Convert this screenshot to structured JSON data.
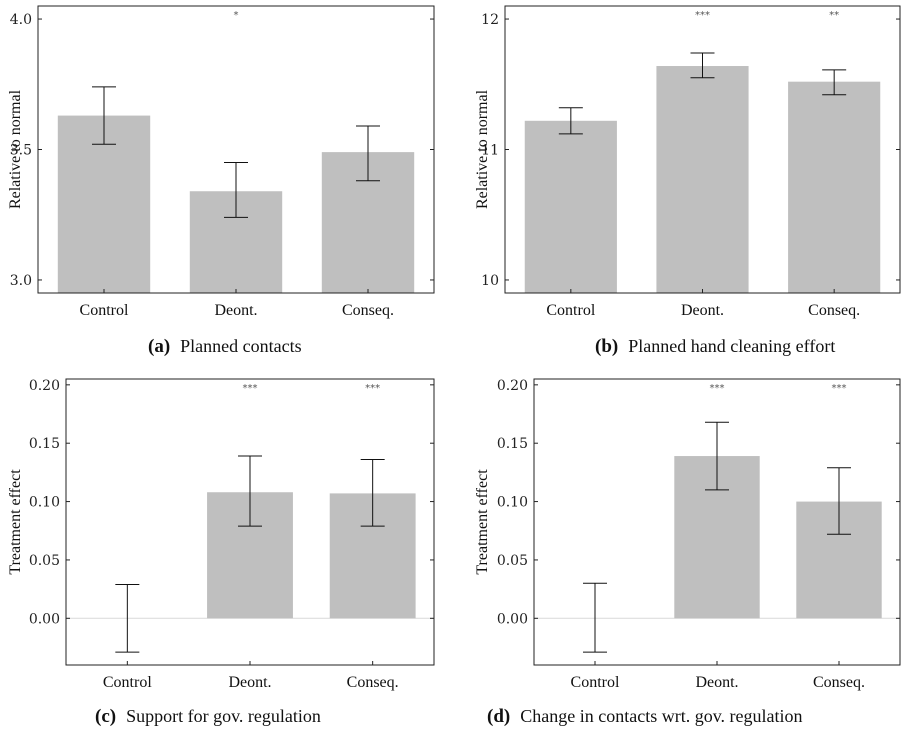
{
  "chart_data": [
    {
      "type": "bar",
      "caption_letter": "(a)",
      "caption": "Planned contacts",
      "ylabel": "Relative to normal",
      "ylim": [
        2.95,
        4.05
      ],
      "yticks": [
        3.0,
        3.5,
        4.0
      ],
      "ytick_labels": [
        "3.0",
        "3.5",
        "4.0"
      ],
      "categories": [
        "Control",
        "Deont.",
        "Conseq."
      ],
      "values": [
        3.63,
        3.34,
        3.49
      ],
      "err_low": [
        3.52,
        3.24,
        3.38
      ],
      "err_high": [
        3.74,
        3.45,
        3.59
      ],
      "stars": [
        "",
        "*",
        ""
      ],
      "zero_line": false,
      "colors": {
        "bar": "#bfbfbf"
      }
    },
    {
      "type": "bar",
      "caption_letter": "(b)",
      "caption": "Planned hand cleaning effort",
      "ylabel": "Relative to normal",
      "ylim": [
        9.9,
        12.1
      ],
      "yticks": [
        10,
        11,
        12
      ],
      "ytick_labels": [
        "10",
        "11",
        "12"
      ],
      "categories": [
        "Control",
        "Deont.",
        "Conseq."
      ],
      "values": [
        11.22,
        11.64,
        11.52
      ],
      "err_low": [
        11.12,
        11.55,
        11.42
      ],
      "err_high": [
        11.32,
        11.74,
        11.61
      ],
      "stars": [
        "",
        "***",
        "**"
      ],
      "zero_line": false,
      "colors": {
        "bar": "#bfbfbf"
      }
    },
    {
      "type": "bar",
      "caption_letter": "(c)",
      "caption": "Support for gov. regulation",
      "ylabel": "Treatment effect",
      "ylim": [
        -0.04,
        0.205
      ],
      "yticks": [
        0.0,
        0.05,
        0.1,
        0.15,
        0.2
      ],
      "ytick_labels": [
        "0.00",
        "0.05",
        "0.10",
        "0.15",
        "0.20"
      ],
      "categories": [
        "Control",
        "Deont.",
        "Conseq."
      ],
      "values": [
        0.0,
        0.108,
        0.107
      ],
      "err_low": [
        -0.029,
        0.079,
        0.079
      ],
      "err_high": [
        0.029,
        0.139,
        0.136
      ],
      "stars": [
        "",
        "***",
        "***"
      ],
      "zero_line": true,
      "colors": {
        "bar": "#bfbfbf"
      }
    },
    {
      "type": "bar",
      "caption_letter": "(d)",
      "caption": "Change in contacts wrt. gov. regulation",
      "ylabel": "Treatment effect",
      "ylim": [
        -0.04,
        0.205
      ],
      "yticks": [
        0.0,
        0.05,
        0.1,
        0.15,
        0.2
      ],
      "ytick_labels": [
        "0.00",
        "0.05",
        "0.10",
        "0.15",
        "0.20"
      ],
      "categories": [
        "Control",
        "Deont.",
        "Conseq."
      ],
      "values": [
        0.0,
        0.139,
        0.1
      ],
      "err_low": [
        -0.029,
        0.11,
        0.072
      ],
      "err_high": [
        0.03,
        0.168,
        0.129
      ],
      "stars": [
        "",
        "***",
        "***"
      ],
      "zero_line": true,
      "colors": {
        "bar": "#bfbfbf"
      }
    }
  ]
}
